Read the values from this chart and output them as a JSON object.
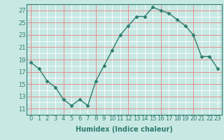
{
  "x": [
    0,
    1,
    2,
    3,
    4,
    5,
    6,
    7,
    8,
    9,
    10,
    11,
    12,
    13,
    14,
    15,
    16,
    17,
    18,
    19,
    20,
    21,
    22,
    23
  ],
  "y": [
    18.5,
    17.5,
    15.5,
    14.5,
    12.5,
    11.5,
    12.5,
    11.5,
    15.5,
    18.0,
    20.5,
    23.0,
    24.5,
    26.0,
    26.0,
    27.5,
    27.0,
    26.5,
    25.5,
    24.5,
    23.0,
    19.5,
    19.5,
    17.5
  ],
  "line_color": "#2e7d6e",
  "marker": "D",
  "marker_size": 2.5,
  "bg_color": "#c8e8e4",
  "xlabel": "Humidex (Indice chaleur)",
  "yticks": [
    11,
    13,
    15,
    17,
    19,
    21,
    23,
    25,
    27
  ],
  "xticks": [
    0,
    1,
    2,
    3,
    4,
    5,
    6,
    7,
    8,
    9,
    10,
    11,
    12,
    13,
    14,
    15,
    16,
    17,
    18,
    19,
    20,
    21,
    22,
    23
  ],
  "xlim": [
    -0.5,
    23.5
  ],
  "ylim": [
    10.0,
    28.0
  ],
  "white_grid_y": [
    11,
    12,
    13,
    14,
    15,
    16,
    17,
    18,
    19,
    20,
    21,
    22,
    23,
    24,
    25,
    26,
    27
  ],
  "white_grid_x": [
    0,
    1,
    2,
    3,
    4,
    5,
    6,
    7,
    8,
    9,
    10,
    11,
    12,
    13,
    14,
    15,
    16,
    17,
    18,
    19,
    20,
    21,
    22,
    23
  ],
  "red_grid_y": [
    11,
    13,
    15,
    17,
    19,
    21,
    23,
    25,
    27
  ],
  "red_grid_x": [
    0,
    4,
    8,
    12,
    16,
    20
  ],
  "tick_fontsize": 6,
  "xlabel_fontsize": 7
}
